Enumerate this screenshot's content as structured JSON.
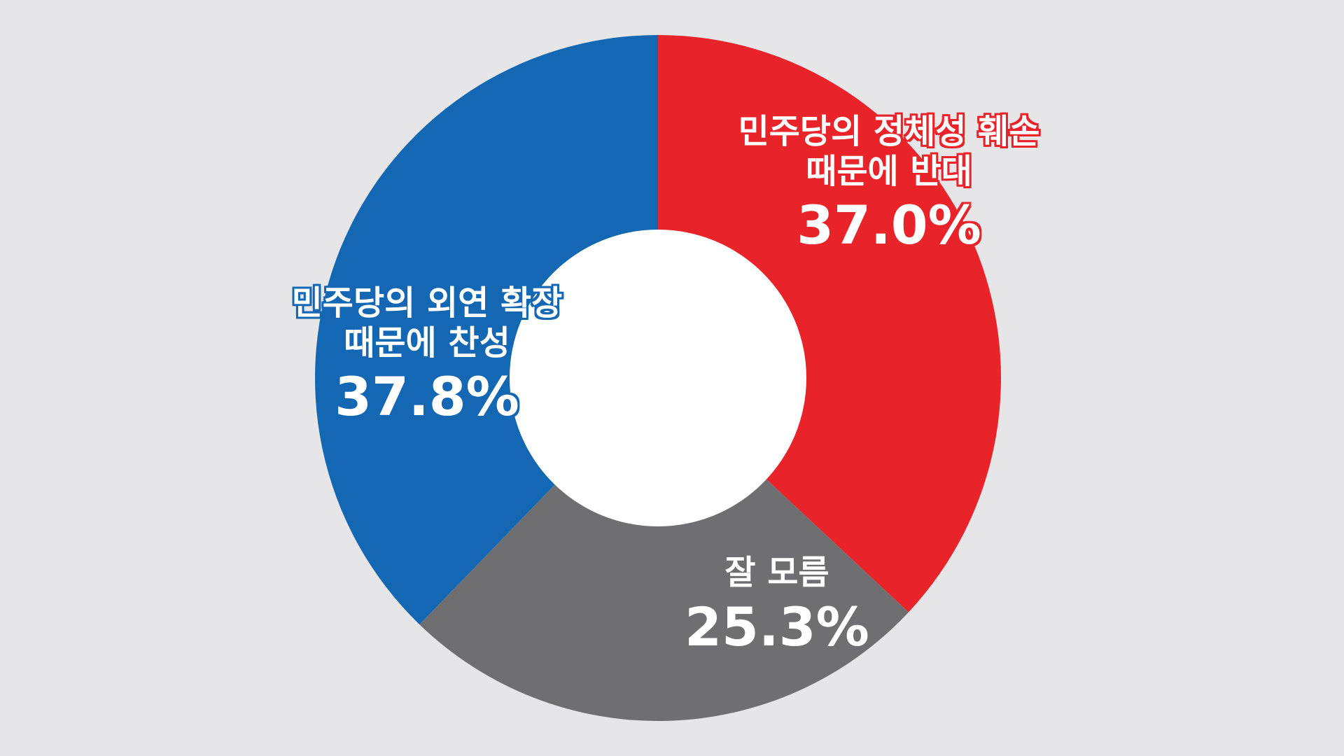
{
  "chart_data": {
    "type": "pie",
    "style": "donut",
    "slices": [
      {
        "label": "민주당의 정체성 훼손 때문에 반대",
        "label_line1": "민주당의 정체성 훼손",
        "label_line2": "때문에 반대",
        "value": 37.0,
        "value_text": "37.0%",
        "color": "#e8242a"
      },
      {
        "label": "잘 모름",
        "label_line1": "잘 모름",
        "label_line2": "",
        "value": 25.3,
        "value_text": "25.3%",
        "color": "#6f6f72"
      },
      {
        "label": "민주당의 외연 확장 때문에 찬성",
        "label_line1": "민주당의 외연 확장",
        "label_line2": "때문에 찬성",
        "value": 37.8,
        "value_text": "37.8%",
        "color": "#1467b3"
      }
    ],
    "start_angle": "12 o'clock",
    "direction": "clockwise"
  },
  "colors": {
    "background": "#e6e6e8",
    "hole": "#ffffff"
  }
}
